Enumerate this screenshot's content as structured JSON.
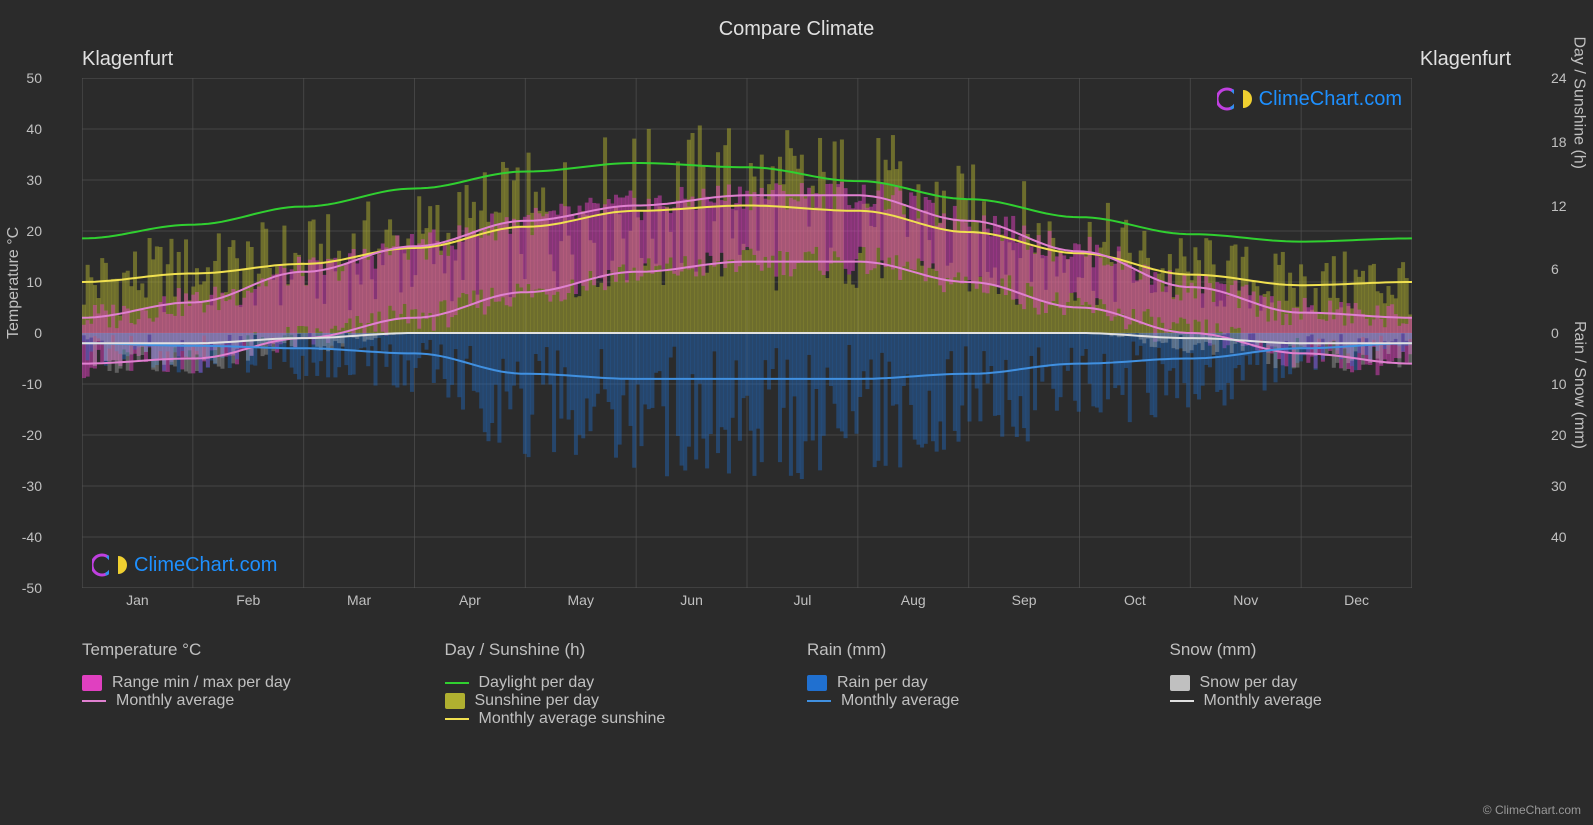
{
  "title": "Compare Climate",
  "location_left": "Klagenfurt",
  "location_right": "Klagenfurt",
  "attribution": "© ClimeChart.com",
  "watermark_text": "ClimeChart.com",
  "colors": {
    "background": "#2b2b2b",
    "grid": "#555555",
    "text": "#c0c0c0",
    "temp_range": "#e040c0",
    "temp_avg": "#e080d0",
    "daylight": "#30d030",
    "sunshine_bar": "#b0b030",
    "sunshine_avg": "#f0e050",
    "rain_bar": "#2070d0",
    "rain_avg": "#4090e0",
    "snow_bar": "#c0c0c0",
    "snow_avg": "#e0e0e0"
  },
  "y_left": {
    "label": "Temperature °C",
    "ticks": [
      50,
      40,
      30,
      20,
      10,
      0,
      -10,
      -20,
      -30,
      -40,
      -50
    ],
    "min": -50,
    "max": 50
  },
  "y_right_top": {
    "label": "Day / Sunshine (h)",
    "ticks": [
      24,
      18,
      12,
      6,
      0
    ],
    "zero_at_temp": 0,
    "max_at_temp": 50
  },
  "y_right_bottom": {
    "label": "Rain / Snow (mm)",
    "ticks": [
      0,
      10,
      20,
      30,
      40
    ],
    "zero_at_temp": 0,
    "max_at_temp": -40
  },
  "x_axis": {
    "months": [
      "Jan",
      "Feb",
      "Mar",
      "Apr",
      "May",
      "Jun",
      "Jul",
      "Aug",
      "Sep",
      "Oct",
      "Nov",
      "Dec"
    ]
  },
  "series": {
    "daylight": [
      8.9,
      10.2,
      11.9,
      13.6,
      15.2,
      16.0,
      15.6,
      14.3,
      12.6,
      10.9,
      9.3,
      8.6
    ],
    "sunshine_avg": [
      4.8,
      5.6,
      6.5,
      8.0,
      10.0,
      11.5,
      12.0,
      11.5,
      9.5,
      7.5,
      5.5,
      4.5
    ],
    "temp_avg": [
      -1,
      1,
      5,
      10,
      15,
      18,
      20,
      20,
      15,
      10,
      4,
      0
    ],
    "temp_range_low": [
      -6,
      -5,
      -1,
      3,
      8,
      12,
      14,
      14,
      10,
      5,
      0,
      -4
    ],
    "temp_range_high": [
      3,
      6,
      12,
      17,
      22,
      25,
      27,
      27,
      22,
      16,
      9,
      4
    ],
    "rain_avg": [
      2,
      2.5,
      3,
      4,
      8,
      9,
      9,
      9,
      8,
      6,
      5,
      3
    ],
    "snow_avg": [
      2,
      2,
      1,
      0,
      0,
      0,
      0,
      0,
      0,
      0,
      1,
      2
    ]
  },
  "daily_bars": {
    "count": 365,
    "sunshine_opacity": 0.5,
    "temp_opacity": 0.5,
    "rain_opacity": 0.4,
    "snow_opacity": 0.35
  },
  "legend": {
    "temperature": {
      "header": "Temperature °C",
      "items": [
        {
          "type": "swatch",
          "color": "#e040c0",
          "label": "Range min / max per day"
        },
        {
          "type": "line",
          "color": "#e080d0",
          "label": "Monthly average"
        }
      ]
    },
    "day_sunshine": {
      "header": "Day / Sunshine (h)",
      "items": [
        {
          "type": "line",
          "color": "#30d030",
          "label": "Daylight per day"
        },
        {
          "type": "swatch",
          "color": "#b0b030",
          "label": "Sunshine per day"
        },
        {
          "type": "line",
          "color": "#f0e050",
          "label": "Monthly average sunshine"
        }
      ]
    },
    "rain": {
      "header": "Rain (mm)",
      "items": [
        {
          "type": "swatch",
          "color": "#2070d0",
          "label": "Rain per day"
        },
        {
          "type": "line",
          "color": "#4090e0",
          "label": "Monthly average"
        }
      ]
    },
    "snow": {
      "header": "Snow (mm)",
      "items": [
        {
          "type": "swatch",
          "color": "#c0c0c0",
          "label": "Snow per day"
        },
        {
          "type": "line",
          "color": "#e0e0e0",
          "label": "Monthly average"
        }
      ]
    }
  }
}
